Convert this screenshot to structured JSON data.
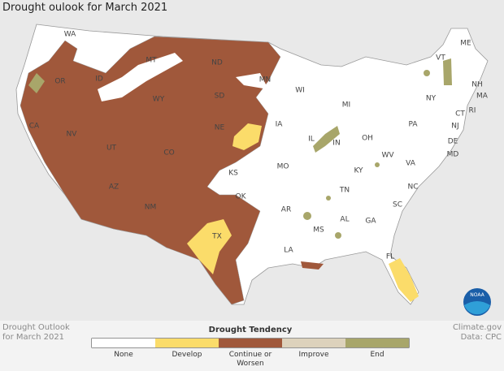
{
  "title": "Drought oulook for March 2021",
  "states": [
    "WA",
    "OR",
    "CA",
    "NV",
    "ID",
    "MT",
    "WY",
    "UT",
    "AZ",
    "NM",
    "CO",
    "ND",
    "SD",
    "NE",
    "KS",
    "OK",
    "TX",
    "MN",
    "IA",
    "MO",
    "AR",
    "LA",
    "WI",
    "IL",
    "MI",
    "IN",
    "OH",
    "KY",
    "TN",
    "MS",
    "AL",
    "GA",
    "FL",
    "SC",
    "NC",
    "VA",
    "WV",
    "PA",
    "NY",
    "VT",
    "NH",
    "ME",
    "MA",
    "CT",
    "RI",
    "NJ",
    "DE",
    "MD"
  ],
  "logo": "NOAA",
  "legend": {
    "title": "Drought Tendency",
    "items": [
      {
        "label": "None",
        "color": "#ffffff"
      },
      {
        "label": "Develop",
        "color": "#fbdc6a"
      },
      {
        "label": "Continue or Worsen",
        "color": "#a0583b"
      },
      {
        "label": "Improve",
        "color": "#ddd2bc"
      },
      {
        "label": "End",
        "color": "#a8a66a"
      }
    ]
  },
  "footer": {
    "left": [
      "Drought Outlook",
      "for March 2021"
    ],
    "right": [
      "Climate.gov",
      "Data: CPC"
    ]
  }
}
